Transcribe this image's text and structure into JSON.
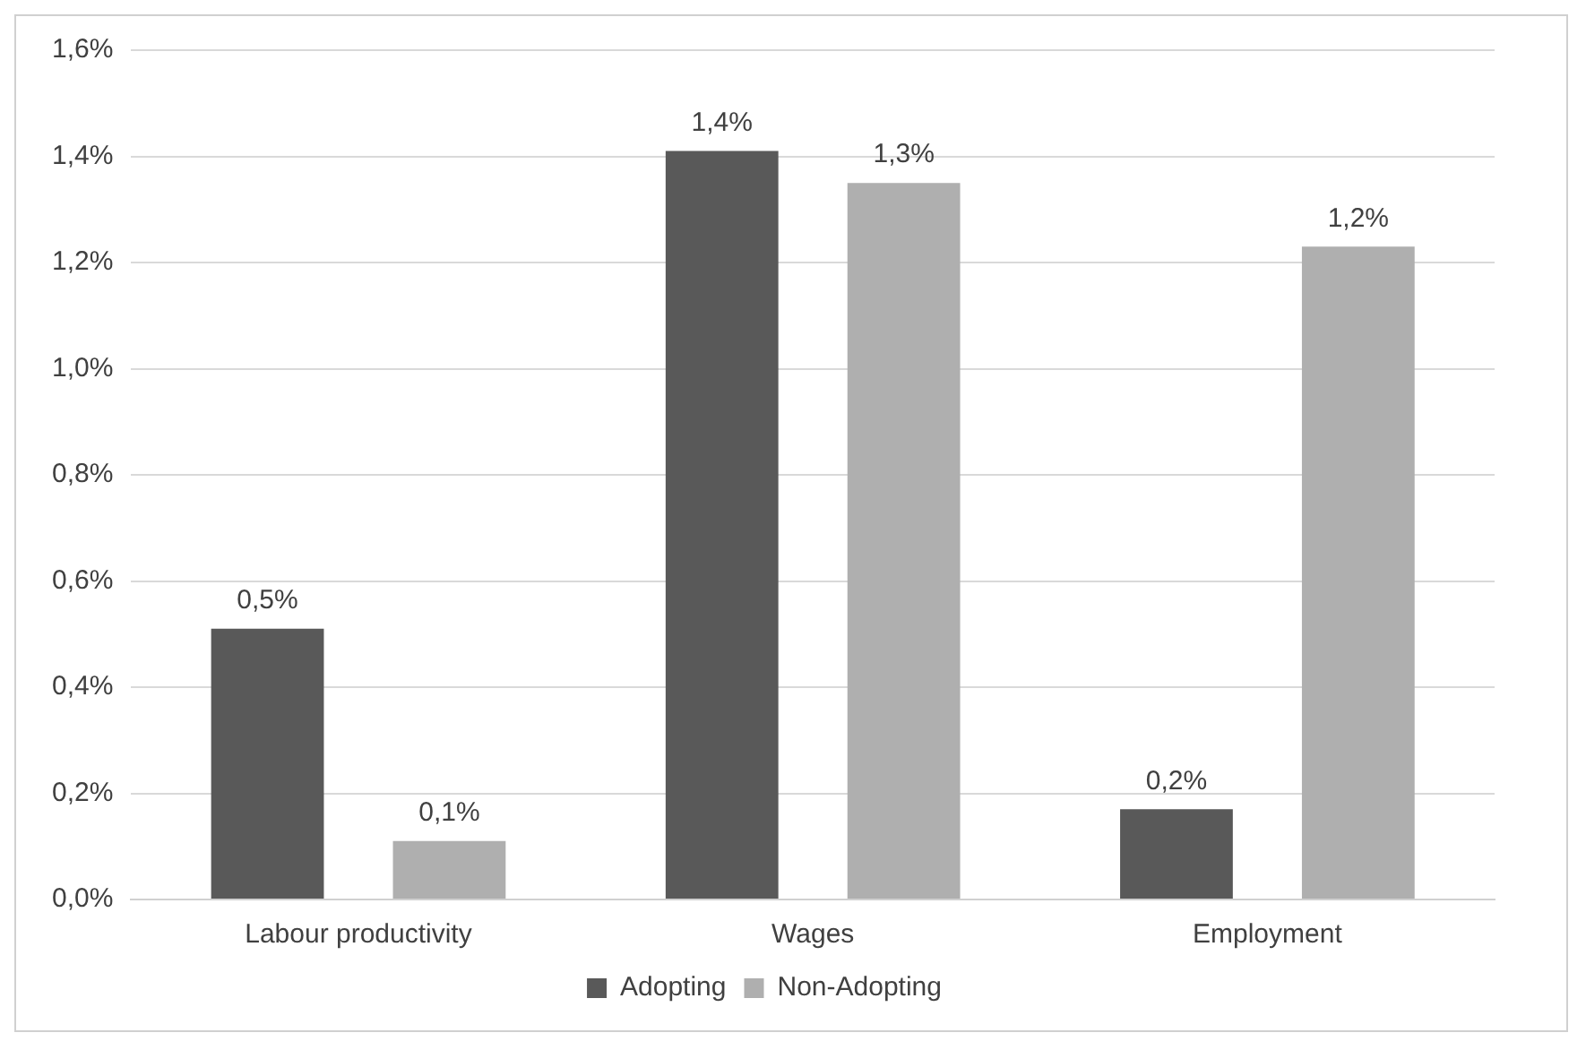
{
  "chart_data": {
    "type": "bar",
    "categories": [
      "Labour productivity",
      "Wages",
      "Employment"
    ],
    "series": [
      {
        "name": "Adopting",
        "color": "#595959",
        "values": [
          0.51,
          1.41,
          0.17
        ],
        "value_labels": [
          "0,5%",
          "1,4%",
          "0,2%"
        ]
      },
      {
        "name": "Non-Adopting",
        "color": "#afafaf",
        "values": [
          0.11,
          1.35,
          1.23
        ],
        "value_labels": [
          "0,1%",
          "1,3%",
          "1,2%"
        ]
      }
    ],
    "ylim": [
      0,
      1.6
    ],
    "yticks": [
      {
        "value": 0,
        "label": "0,0%"
      },
      {
        "value": 0.2,
        "label": "0,2%"
      },
      {
        "value": 0.4,
        "label": "0,4%"
      },
      {
        "value": 0.6,
        "label": "0,6%"
      },
      {
        "value": 0.8,
        "label": "0,8%"
      },
      {
        "value": 1.0,
        "label": "1,0%"
      },
      {
        "value": 1.2,
        "label": "1,2%"
      },
      {
        "value": 1.4,
        "label": "1,4%"
      },
      {
        "value": 1.6,
        "label": "1,6%"
      }
    ],
    "grid": "y",
    "legend": "bottom"
  }
}
